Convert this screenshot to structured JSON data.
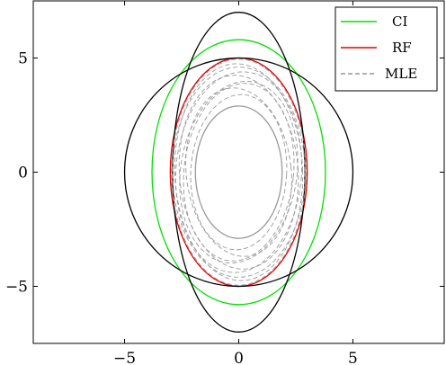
{
  "chart_data": {
    "type": "line",
    "title": "",
    "xlabel": "",
    "ylabel": "",
    "xlim": [
      -9,
      9
    ],
    "ylim": [
      -7.5,
      7.5
    ],
    "xticks": [
      -5,
      0,
      5
    ],
    "yticks": [
      -5,
      0,
      5
    ],
    "xtick_labels": [
      "−5",
      "0",
      "5"
    ],
    "ytick_labels": [
      "−5",
      "0",
      "5"
    ],
    "grid": false,
    "legend_position": "top-right",
    "legend": [
      {
        "label": "CI",
        "color": "#00e000",
        "dash": "solid"
      },
      {
        "label": "RF",
        "color": "#e00000",
        "dash": "solid"
      },
      {
        "label": "MLE",
        "color": "#999999",
        "dash": "dashed"
      }
    ],
    "curves": [
      {
        "kind": "ellipse",
        "name": "CI",
        "cx": 0,
        "cy": 0,
        "rx": 3.8,
        "ry": 5.8,
        "color": "#00e000",
        "dash": "solid"
      },
      {
        "kind": "ellipse",
        "name": "RF",
        "cx": 0,
        "cy": 0,
        "rx": 3.0,
        "ry": 5.0,
        "color": "#e00000",
        "dash": "solid"
      },
      {
        "kind": "ellipse",
        "cx": 0,
        "cy": 0,
        "rx": 5.0,
        "ry": 5.0,
        "color": "#000000",
        "dash": "solid"
      },
      {
        "kind": "ellipse",
        "cx": 0,
        "cy": 0,
        "rx": 2.9,
        "ry": 7.0,
        "color": "#000000",
        "dash": "solid"
      },
      {
        "kind": "ellipse",
        "cx": 0,
        "cy": 0,
        "rx": 1.9,
        "ry": 2.9,
        "color": "#999999",
        "dash": "solid"
      },
      {
        "kind": "ellipse",
        "name": "MLE",
        "cx": 0,
        "cy": 0,
        "rx": 2.95,
        "ry": 4.95,
        "color": "#999999",
        "dash": "dashed",
        "rot": 0
      },
      {
        "kind": "ellipse",
        "cx": 0,
        "cy": 0,
        "rx": 2.9,
        "ry": 4.6,
        "color": "#999999",
        "dash": "dashed",
        "rot": 0
      },
      {
        "kind": "ellipse",
        "cx": 0,
        "cy": 0,
        "rx": 2.75,
        "ry": 4.4,
        "color": "#999999",
        "dash": "dashed",
        "rot": 4
      },
      {
        "kind": "ellipse",
        "cx": 0,
        "cy": 0,
        "rx": 2.6,
        "ry": 4.25,
        "color": "#999999",
        "dash": "dashed",
        "rot": -4
      },
      {
        "kind": "ellipse",
        "cx": 0,
        "cy": 0,
        "rx": 2.4,
        "ry": 3.9,
        "color": "#999999",
        "dash": "dashed",
        "rot": 6
      },
      {
        "kind": "ellipse",
        "cx": 0,
        "cy": 0,
        "rx": 2.3,
        "ry": 3.7,
        "color": "#999999",
        "dash": "dashed",
        "rot": -6
      },
      {
        "kind": "ellipse",
        "cx": 0,
        "cy": 0,
        "rx": 2.1,
        "ry": 3.4,
        "color": "#999999",
        "dash": "dashed",
        "rot": 3
      },
      {
        "kind": "ellipse",
        "cx": 0,
        "cy": 0,
        "rx": 2.8,
        "ry": 4.75,
        "color": "#999999",
        "dash": "dashed",
        "rot": -2
      },
      {
        "kind": "ellipse",
        "cx": 0,
        "cy": 0,
        "rx": 2.55,
        "ry": 4.0,
        "color": "#999999",
        "dash": "dashed",
        "rot": 8
      }
    ]
  }
}
